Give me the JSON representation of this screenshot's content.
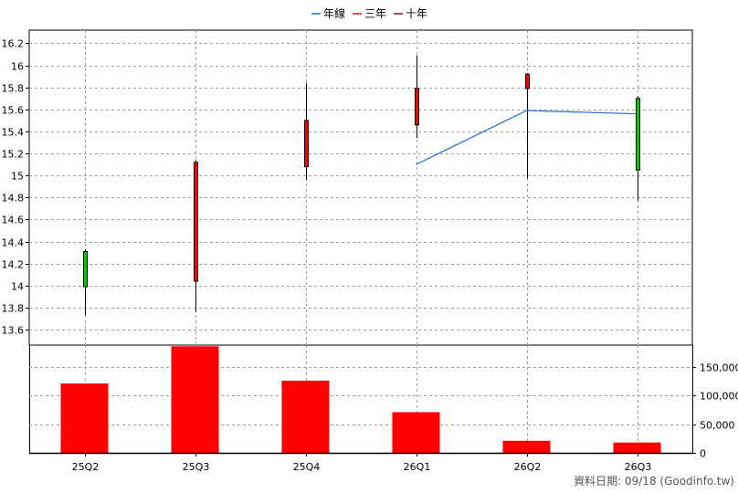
{
  "legend": [
    {
      "label": "年線",
      "color": "#1f6fcf"
    },
    {
      "label": "三年",
      "color": "#e01010"
    },
    {
      "label": "十年",
      "color": "#8b0a3a"
    }
  ],
  "footer": {
    "source_label": "資料日期: 09/18  (Goodinfo.tw)"
  },
  "chart_data": [
    {
      "type": "candlestick",
      "categories": [
        "25Q2",
        "25Q3",
        "25Q4",
        "26Q1",
        "26Q2",
        "26Q3"
      ],
      "ohlc": [
        {
          "open": 14.31,
          "high": 14.33,
          "low": 13.73,
          "close": 13.99
        },
        {
          "open": 14.04,
          "high": 15.14,
          "low": 13.76,
          "close": 15.12
        },
        {
          "open": 15.08,
          "high": 15.84,
          "low": 14.96,
          "close": 15.5
        },
        {
          "open": 15.46,
          "high": 16.09,
          "low": 15.34,
          "close": 15.79
        },
        {
          "open": 15.79,
          "high": 15.93,
          "low": 14.97,
          "close": 15.92
        },
        {
          "open": 15.7,
          "high": 15.72,
          "low": 14.77,
          "close": 15.05
        }
      ],
      "up_color": "#ff0000",
      "down_color": "#00cc00",
      "series": [
        {
          "name": "年線",
          "values": [
            null,
            null,
            null,
            15.1,
            15.59,
            15.56
          ]
        }
      ],
      "y_ticks": [
        13.6,
        13.8,
        14,
        14.2,
        14.4,
        14.6,
        14.8,
        15,
        15.2,
        15.4,
        15.6,
        15.8,
        16,
        16.2
      ],
      "y_tick_labels": [
        "13.6",
        "13.8",
        "14",
        "14.2",
        "14.4",
        "14.6",
        "14.8",
        "15",
        "15.2",
        "15.4",
        "15.6",
        "15.8",
        "16",
        "16.2"
      ],
      "ylim": [
        13.46,
        16.32
      ],
      "grid": true,
      "legend_position": "top-center"
    },
    {
      "type": "bar",
      "categories": [
        "25Q2",
        "25Q3",
        "25Q4",
        "26Q1",
        "26Q2",
        "26Q3"
      ],
      "values": [
        121000,
        186000,
        126000,
        71000,
        21000,
        18000
      ],
      "color": "#ff0000",
      "y_ticks": [
        0,
        50000,
        100000,
        150000
      ],
      "y_tick_labels": [
        "0",
        "50,000",
        "100,000",
        "150,000"
      ],
      "ylim": [
        0,
        188000
      ],
      "grid": true
    }
  ]
}
